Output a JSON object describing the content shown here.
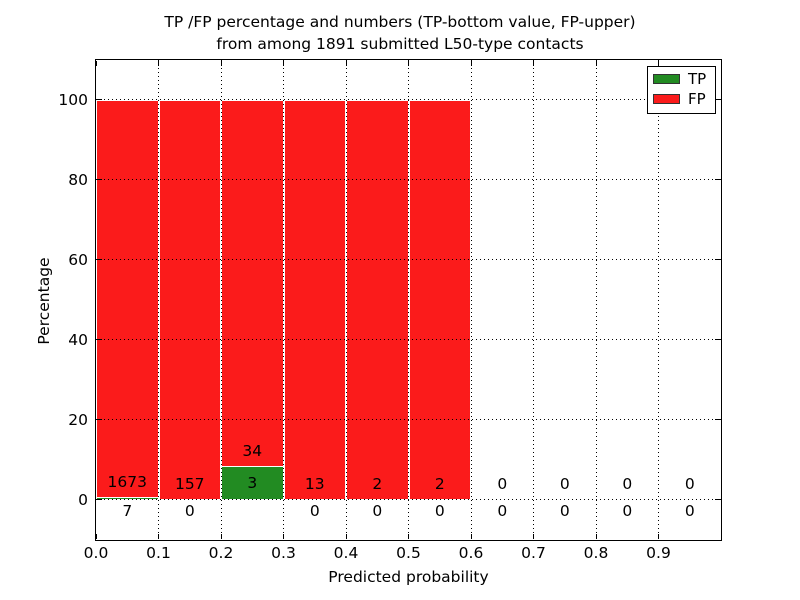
{
  "title": {
    "line1": "TP /FP percentage and numbers (TP-bottom value, FP-upper)",
    "line2": "from among 1891 submitted L50-type contacts"
  },
  "legend": {
    "items": [
      {
        "label": "TP",
        "color": "#228b22"
      },
      {
        "label": "FP",
        "color": "#fb1b1b"
      }
    ]
  },
  "chart_data": {
    "type": "bar",
    "subtype": "stacked-percentage-histogram",
    "title": "TP /FP percentage and numbers (TP-bottom value, FP-upper) from among 1891 submitted L50-type contacts",
    "xlabel": "Predicted probability",
    "ylabel": "Percentage",
    "xlim": [
      0.0,
      1.0
    ],
    "ylim": [
      -10,
      110
    ],
    "grid": "dotted",
    "legend_position": "upper right",
    "x_tick_labels": [
      "0.0",
      "0.1",
      "0.2",
      "0.3",
      "0.4",
      "0.5",
      "0.6",
      "0.7",
      "0.8",
      "0.9"
    ],
    "y_tick_labels": [
      "0",
      "20",
      "40",
      "60",
      "80",
      "100"
    ],
    "bin_width": 0.1,
    "bin_starts": [
      0.0,
      0.1,
      0.2,
      0.3,
      0.4,
      0.5,
      0.6,
      0.7,
      0.8,
      0.9
    ],
    "series": [
      {
        "name": "TP",
        "color": "#228b22",
        "counts": [
          7,
          0,
          3,
          0,
          0,
          0,
          0,
          0,
          0,
          0
        ]
      },
      {
        "name": "FP",
        "color": "#fb1b1b",
        "counts": [
          1673,
          157,
          34,
          13,
          2,
          2,
          0,
          0,
          0,
          0
        ]
      }
    ],
    "annotation_note": "upper number per bin = FP count, lower number = TP count"
  }
}
